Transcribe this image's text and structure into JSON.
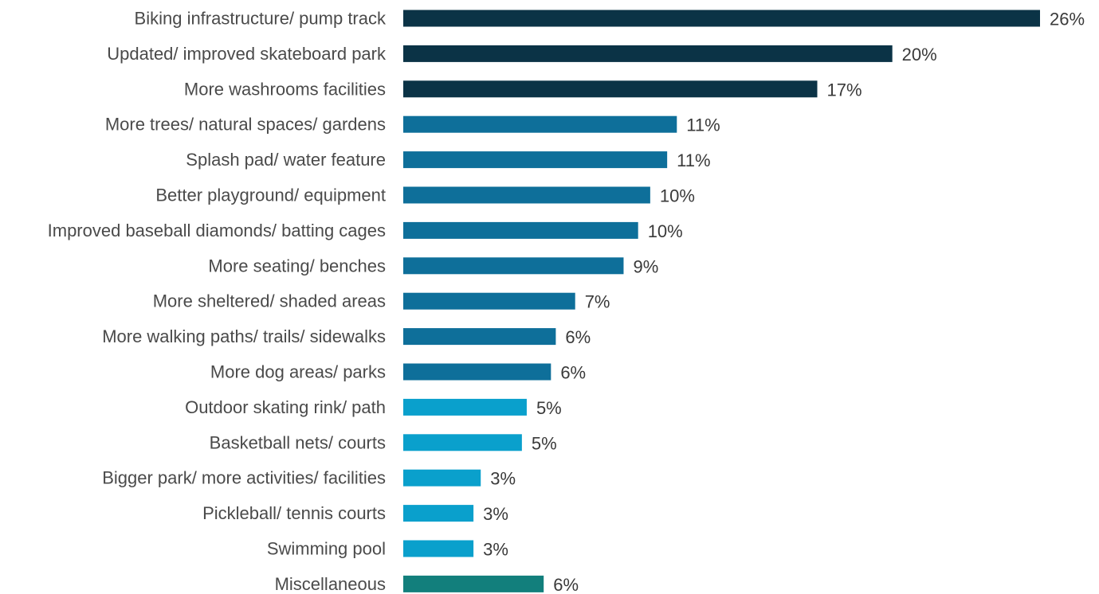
{
  "chart_data": {
    "type": "bar",
    "orientation": "horizontal",
    "categories": [
      "Biking infrastructure/ pump track",
      "Updated/ improved skateboard park",
      "More washrooms facilities",
      "More trees/ natural spaces/ gardens",
      "Splash pad/ water feature",
      "Better playground/ equipment",
      "Improved baseball diamonds/ batting cages",
      "More seating/ benches",
      "More sheltered/ shaded areas",
      "More walking paths/ trails/ sidewalks",
      "More dog areas/ parks",
      "Outdoor skating rink/ path",
      "Basketball nets/ courts",
      "Bigger park/ more activities/ facilities",
      "Pickleball/ tennis courts",
      "Swimming pool",
      "Miscellaneous"
    ],
    "values": [
      26,
      20,
      17,
      11,
      11,
      10,
      10,
      9,
      7,
      6,
      6,
      5,
      5,
      3,
      3,
      3,
      6
    ],
    "value_labels": [
      "26%",
      "20%",
      "17%",
      "11%",
      "11%",
      "10%",
      "10%",
      "9%",
      "7%",
      "6%",
      "6%",
      "5%",
      "5%",
      "3%",
      "3%",
      "3%",
      "6%"
    ],
    "precise_values": [
      26.3,
      20.2,
      17.1,
      11.3,
      10.9,
      10.2,
      9.7,
      9.1,
      7.1,
      6.3,
      6.1,
      5.1,
      4.9,
      3.2,
      2.9,
      2.9,
      5.8
    ],
    "bar_colors": [
      "#0b3346",
      "#0b3346",
      "#0b3346",
      "#0e6f9a",
      "#0e6f9a",
      "#0e6f9a",
      "#0e6f9a",
      "#0e6f9a",
      "#0e6f9a",
      "#0e6f9a",
      "#0e6f9a",
      "#0aa0cc",
      "#0aa0cc",
      "#0aa0cc",
      "#0aa0cc",
      "#0aa0cc",
      "#127f7c"
    ],
    "xlim": [
      0,
      26.3
    ],
    "grid": false,
    "legend": "none",
    "title": "",
    "xlabel": "",
    "ylabel": ""
  }
}
